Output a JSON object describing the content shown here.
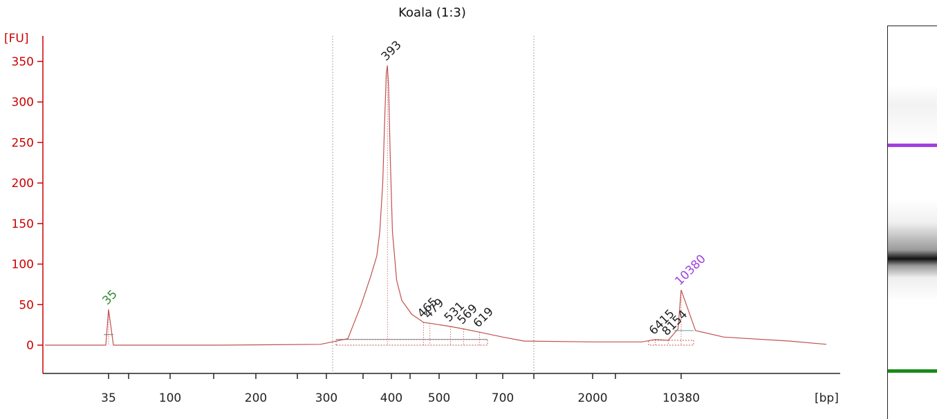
{
  "chart_data": {
    "type": "line",
    "title": "Koala (1:3)",
    "ylabel": "[FU]",
    "xlabel": "[bp]",
    "ylim": [
      -35,
      375
    ],
    "y_ticks": [
      0,
      50,
      100,
      150,
      200,
      250,
      300,
      350
    ],
    "x_tick_labels": [
      "35",
      "100",
      "200",
      "300",
      "400",
      "500",
      "700",
      "2000",
      "10380"
    ],
    "series": [
      {
        "color": "#c0504d",
        "x": [
          35,
          38,
          70,
          150,
          290,
          330,
          350,
          365,
          375,
          380,
          385,
          388,
          391,
          393,
          395,
          398,
          402,
          410,
          420,
          440,
          465,
          479,
          531,
          569,
          619,
          700,
          900,
          2000,
          5000,
          6415,
          8154,
          9800,
          10380,
          10900,
          12000,
          15000,
          17000
        ],
        "y": [
          44,
          0,
          0,
          0,
          1,
          8,
          50,
          85,
          110,
          140,
          200,
          270,
          335,
          345,
          320,
          230,
          140,
          80,
          55,
          38,
          28,
          27,
          23,
          20,
          16,
          10,
          5,
          4,
          4,
          7,
          6,
          20,
          68,
          18,
          10,
          5,
          1
        ]
      }
    ],
    "peaks": [
      {
        "label": "35",
        "x": 35,
        "y": 44,
        "color": "#2e8b2e"
      },
      {
        "label": "393",
        "x": 393,
        "y": 345,
        "color": "#222222"
      },
      {
        "label": "465",
        "x": 465,
        "y": 28,
        "color": "#222222"
      },
      {
        "label": "479",
        "x": 479,
        "y": 27,
        "color": "#222222"
      },
      {
        "label": "531",
        "x": 531,
        "y": 23,
        "color": "#222222"
      },
      {
        "label": "569",
        "x": 569,
        "y": 20,
        "color": "#222222"
      },
      {
        "label": "619",
        "x": 619,
        "y": 16,
        "color": "#222222"
      },
      {
        "label": "6415",
        "x": 6415,
        "y": 7,
        "color": "#222222"
      },
      {
        "label": "8154",
        "x": 8154,
        "y": 6,
        "color": "#222222"
      },
      {
        "label": "10380",
        "x": 10380,
        "y": 68,
        "color": "#a040e0"
      }
    ],
    "region_lines_bp": [
      310,
      800
    ],
    "grid": false
  },
  "gel": {
    "upper_marker_color": "#a040e0",
    "lower_marker_color": "#1a8a1a",
    "upper_marker_level": 0.303,
    "lower_marker_level": 0.877
  }
}
